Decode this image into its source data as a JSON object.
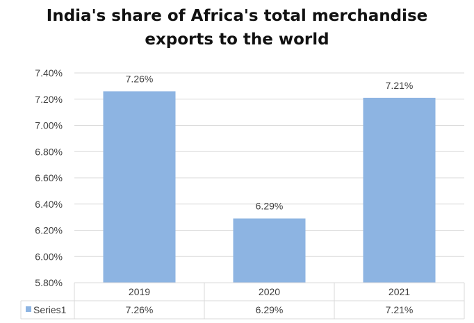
{
  "chart_data": {
    "type": "bar",
    "title_line1": "India's share of Africa's total merchandise",
    "title_line2": "exports to the world",
    "categories": [
      "2019",
      "2020",
      "2021"
    ],
    "series": [
      {
        "name": "Series1",
        "values": [
          7.26,
          6.29,
          7.21
        ],
        "labels": [
          "7.26%",
          "6.29%",
          "7.21%"
        ],
        "color": "#8db4e2"
      }
    ],
    "ylim": [
      5.8,
      7.4
    ],
    "yticks": [
      5.8,
      6.0,
      6.2,
      6.4,
      6.6,
      6.8,
      7.0,
      7.2,
      7.4
    ],
    "ytick_labels": [
      "5.80%",
      "6.00%",
      "6.20%",
      "6.40%",
      "6.60%",
      "6.80%",
      "7.00%",
      "7.20%",
      "7.40%"
    ],
    "grid": true,
    "legend": "data-table",
    "xlabel": "",
    "ylabel": ""
  }
}
